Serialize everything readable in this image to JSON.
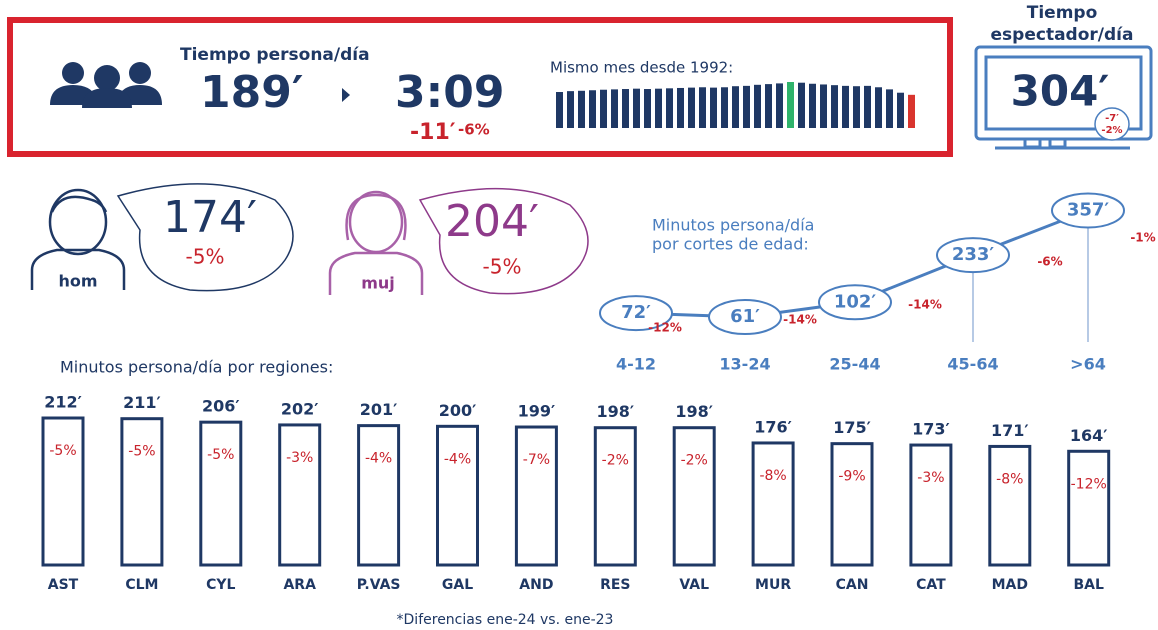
{
  "header": {
    "title": "Tiempo persona/día",
    "value": "189′",
    "time": "3:09",
    "diff": "-11′",
    "diff_pct": "-6%"
  },
  "viewer": {
    "title_1": "Tiempo",
    "title_2": "espectador/día",
    "value": "304′",
    "diff": "-7′",
    "diff_pct": "-2%"
  },
  "gender": [
    {
      "label": "hom",
      "value": "174′",
      "diff": "-5%"
    },
    {
      "label": "muj",
      "value": "204′",
      "diff": "-5%"
    }
  ],
  "chart_data": [
    {
      "type": "bar",
      "title": "Mismo mes desde 1992:",
      "values": [
        205,
        210,
        212,
        215,
        218,
        220,
        222,
        224,
        222,
        224,
        226,
        228,
        230,
        232,
        230,
        232,
        238,
        240,
        246,
        250,
        254,
        262,
        258,
        252,
        248,
        244,
        240,
        238,
        240,
        232,
        220,
        201,
        189
      ],
      "colors": [
        "#1f3864",
        "#1f3864",
        "#1f3864",
        "#1f3864",
        "#1f3864",
        "#1f3864",
        "#1f3864",
        "#1f3864",
        "#1f3864",
        "#1f3864",
        "#1f3864",
        "#1f3864",
        "#1f3864",
        "#1f3864",
        "#1f3864",
        "#1f3864",
        "#1f3864",
        "#1f3864",
        "#1f3864",
        "#1f3864",
        "#1f3864",
        "#2fb36b",
        "#1f3864",
        "#1f3864",
        "#1f3864",
        "#1f3864",
        "#1f3864",
        "#1f3864",
        "#1f3864",
        "#1f3864",
        "#1f3864",
        "#1f3864",
        "#d9352e"
      ]
    },
    {
      "type": "line",
      "title_1": "Minutos persona/día",
      "title_2": "por cortes de edad:",
      "color": "#4a7ebf",
      "categories": [
        "4-12",
        "13-24",
        "25-44",
        "45-64",
        ">64"
      ],
      "values": [
        72,
        61,
        102,
        233,
        357
      ],
      "value_labels": [
        "72′",
        "61′",
        "102′",
        "233′",
        "357′"
      ],
      "changes": [
        "-12%",
        "-14%",
        "-14%",
        "-6%",
        "-1%"
      ]
    },
    {
      "type": "bar",
      "title": "Minutos persona/día por regiones:",
      "color": "#1f3864",
      "categories": [
        "AST",
        "CLM",
        "CYL",
        "ARA",
        "P.VAS",
        "GAL",
        "AND",
        "RES",
        "VAL",
        "MUR",
        "CAN",
        "CAT",
        "MAD",
        "BAL"
      ],
      "values": [
        212,
        211,
        206,
        202,
        201,
        200,
        199,
        198,
        198,
        176,
        175,
        173,
        171,
        164
      ],
      "value_labels": [
        "212′",
        "211′",
        "206′",
        "202′",
        "201′",
        "200′",
        "199′",
        "198′",
        "198′",
        "176′",
        "175′",
        "173′",
        "171′",
        "164′"
      ],
      "changes": [
        "-5%",
        "-5%",
        "-5%",
        "-3%",
        "-4%",
        "-4%",
        "-7%",
        "-2%",
        "-2%",
        "-8%",
        "-9%",
        "-3%",
        "-8%",
        "-12%"
      ]
    }
  ],
  "footnote": "*Diferencias ene-24 vs. ene-23"
}
